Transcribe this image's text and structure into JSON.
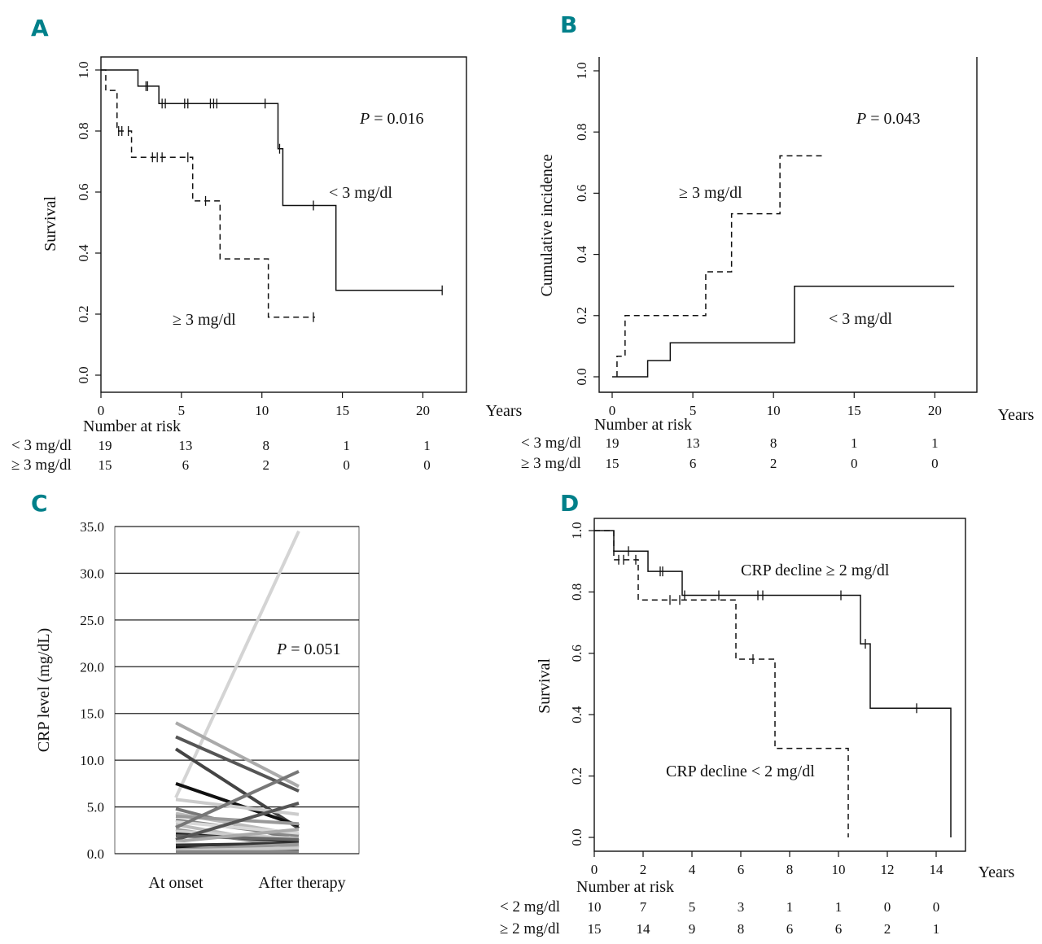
{
  "colors": {
    "panel_label": "#00808a",
    "ink": "#111111",
    "grid": "#222222"
  },
  "chart_data": [
    {
      "panel": "A",
      "type": "line",
      "subtype": "kaplan-meier survival",
      "ylabel": "Survival",
      "xlabel": "Years",
      "xlim": [
        0,
        22
      ],
      "ylim": [
        0,
        1.0
      ],
      "xticks": [
        0,
        5,
        10,
        15,
        20
      ],
      "yticks": [
        "0.0",
        "0.2",
        "0.4",
        "0.6",
        "0.8",
        "1.0"
      ],
      "pvalue_label": "P",
      "pvalue_text": " = 0.016",
      "series": [
        {
          "name": "< 3 mg/dl",
          "style": "solid",
          "steps": [
            [
              0,
              1.0
            ],
            [
              2.3,
              0.947
            ],
            [
              3.6,
              0.89
            ],
            [
              11.0,
              0.742
            ],
            [
              11.3,
              0.556
            ],
            [
              14.6,
              0.278
            ],
            [
              21.2,
              0.278
            ]
          ],
          "censor": [
            [
              2.8,
              0.947
            ],
            [
              2.9,
              0.947
            ],
            [
              3.8,
              0.89
            ],
            [
              4.0,
              0.89
            ],
            [
              5.2,
              0.89
            ],
            [
              5.4,
              0.89
            ],
            [
              6.8,
              0.89
            ],
            [
              7.0,
              0.89
            ],
            [
              7.2,
              0.89
            ],
            [
              10.2,
              0.89
            ],
            [
              11.1,
              0.742
            ],
            [
              13.2,
              0.556
            ],
            [
              21.2,
              0.278
            ]
          ]
        },
        {
          "name": "≥ 3 mg/dl",
          "style": "dashed",
          "steps": [
            [
              0,
              1.0
            ],
            [
              0.3,
              0.933
            ],
            [
              1.0,
              0.8
            ],
            [
              1.9,
              0.714
            ],
            [
              5.7,
              0.571
            ],
            [
              7.4,
              0.381
            ],
            [
              10.4,
              0.19
            ],
            [
              13.3,
              0.19
            ]
          ],
          "censor": [
            [
              1.1,
              0.8
            ],
            [
              1.3,
              0.8
            ],
            [
              1.7,
              0.8
            ],
            [
              3.2,
              0.714
            ],
            [
              3.5,
              0.714
            ],
            [
              3.8,
              0.714
            ],
            [
              5.4,
              0.714
            ],
            [
              6.5,
              0.571
            ],
            [
              13.2,
              0.19
            ]
          ]
        }
      ],
      "annotations": [
        "< 3 mg/dl",
        "≥ 3 mg/dl"
      ],
      "risk_table": {
        "title": "Number at risk",
        "rows": [
          {
            "label": "< 3 mg/dl",
            "values": [
              "19",
              "13",
              "8",
              "1",
              "1"
            ]
          },
          {
            "label": "≥ 3 mg/dl",
            "values": [
              "15",
              "6",
              "2",
              "0",
              "0"
            ]
          }
        ]
      }
    },
    {
      "panel": "B",
      "type": "line",
      "subtype": "cumulative incidence",
      "ylabel": "Cumulative incidence",
      "xlabel": "Years",
      "xlim": [
        0,
        22
      ],
      "ylim": [
        0,
        1.0
      ],
      "xticks": [
        0,
        5,
        10,
        15,
        20
      ],
      "yticks": [
        "0.0",
        "0.2",
        "0.4",
        "0.6",
        "0.8",
        "1.0"
      ],
      "pvalue_label": "P",
      "pvalue_text": " = 0.043",
      "series": [
        {
          "name": "≥ 3 mg/dl",
          "style": "dashed",
          "steps": [
            [
              0.3,
              0
            ],
            [
              0.3,
              0.067
            ],
            [
              0.8,
              0.2
            ],
            [
              5.8,
              0.343
            ],
            [
              7.4,
              0.533
            ],
            [
              10.4,
              0.722
            ],
            [
              13.0,
              0.722
            ]
          ]
        },
        {
          "name": "< 3 mg/dl",
          "style": "solid",
          "steps": [
            [
              0,
              0
            ],
            [
              2.2,
              0.053
            ],
            [
              3.6,
              0.111
            ],
            [
              11.3,
              0.296
            ],
            [
              21.2,
              0.296
            ]
          ]
        }
      ],
      "annotations": [
        "≥  3 mg/dl",
        "< 3 mg/dl"
      ],
      "risk_table": {
        "title": "Number at risk",
        "rows": [
          {
            "label": "< 3 mg/dl",
            "values": [
              "19",
              "13",
              "8",
              "1",
              "1"
            ]
          },
          {
            "label": "≥ 3 mg/dl",
            "values": [
              "15",
              "6",
              "2",
              "0",
              "0"
            ]
          }
        ]
      }
    },
    {
      "panel": "C",
      "type": "line",
      "subtype": "paired before/after",
      "ylabel": "CRP level (mg/dL)",
      "categories": [
        "At onset",
        "After therapy"
      ],
      "ylim": [
        0,
        35
      ],
      "yticks": [
        "0.0",
        "5.0",
        "10.0",
        "15.0",
        "20.0",
        "25.0",
        "30.0",
        "35.0"
      ],
      "pvalue_label": "P",
      "pvalue_text": " = 0.051",
      "pairs": [
        [
          6.0,
          34.5,
          "#d4d4d4"
        ],
        [
          14.0,
          7.2,
          "#aaaaaa"
        ],
        [
          12.5,
          6.7,
          "#555555"
        ],
        [
          11.2,
          2.7,
          "#444444"
        ],
        [
          7.5,
          3.0,
          "#111111"
        ],
        [
          5.8,
          4.2,
          "#cccccc"
        ],
        [
          4.8,
          1.4,
          "#777777"
        ],
        [
          4.3,
          2.0,
          "#bbbbbb"
        ],
        [
          4.0,
          3.2,
          "#999999"
        ],
        [
          3.6,
          1.9,
          "#888888"
        ],
        [
          3.4,
          2.2,
          "#d8d8d8"
        ],
        [
          3.1,
          0.8,
          "#bbbbbb"
        ],
        [
          2.8,
          8.8,
          "#777777"
        ],
        [
          2.6,
          0.6,
          "#999999"
        ],
        [
          2.4,
          1.6,
          "#cccccc"
        ],
        [
          2.1,
          1.3,
          "#222222"
        ],
        [
          1.9,
          1.5,
          "#666666"
        ],
        [
          1.5,
          5.4,
          "#555555"
        ],
        [
          1.3,
          2.6,
          "#aaaaaa"
        ],
        [
          1.1,
          0.3,
          "#e0e0e0"
        ],
        [
          0.9,
          1.1,
          "#333333"
        ],
        [
          0.6,
          0.4,
          "#111111"
        ],
        [
          0.4,
          1.0,
          "#999999"
        ],
        [
          0.3,
          0.6,
          "#cccccc"
        ],
        [
          0.2,
          0.2,
          "#888888"
        ]
      ]
    },
    {
      "panel": "D",
      "type": "line",
      "subtype": "kaplan-meier survival",
      "ylabel": "Survival",
      "xlabel": "Years",
      "xlim": [
        0,
        15.2
      ],
      "ylim": [
        0,
        1.0
      ],
      "xticks": [
        0,
        2,
        4,
        6,
        8,
        10,
        12,
        14
      ],
      "yticks": [
        "0.0",
        "0.2",
        "0.4",
        "0.6",
        "0.8",
        "1.0"
      ],
      "series": [
        {
          "name": "CRP decline ≥ 2 mg/dl",
          "style": "solid",
          "steps": [
            [
              0,
              1.0
            ],
            [
              0.8,
              0.933
            ],
            [
              2.2,
              0.867
            ],
            [
              3.6,
              0.789
            ],
            [
              10.9,
              0.631
            ],
            [
              11.3,
              0.421
            ],
            [
              14.6,
              0.421
            ],
            [
              14.6,
              0.0
            ]
          ],
          "censor": [
            [
              1.4,
              0.933
            ],
            [
              2.7,
              0.867
            ],
            [
              2.8,
              0.867
            ],
            [
              3.7,
              0.789
            ],
            [
              5.1,
              0.789
            ],
            [
              6.7,
              0.789
            ],
            [
              6.9,
              0.789
            ],
            [
              10.1,
              0.789
            ],
            [
              11.1,
              0.631
            ],
            [
              13.2,
              0.421
            ]
          ]
        },
        {
          "name": "CRP decline < 2 mg/dl",
          "style": "dashed",
          "steps": [
            [
              0,
              1.0
            ],
            [
              0.8,
              0.905
            ],
            [
              1.8,
              0.774
            ],
            [
              5.8,
              0.581
            ],
            [
              7.4,
              0.29
            ],
            [
              10.4,
              0.29
            ],
            [
              10.4,
              0.0
            ]
          ],
          "censor": [
            [
              1.0,
              0.905
            ],
            [
              1.2,
              0.905
            ],
            [
              1.7,
              0.905
            ],
            [
              3.1,
              0.774
            ],
            [
              3.5,
              0.774
            ],
            [
              6.5,
              0.581
            ]
          ]
        }
      ],
      "annotations": [
        "CRP decline ≥ 2 mg/dl",
        "CRP decline < 2 mg/dl"
      ],
      "risk_table": {
        "title": "Number at risk",
        "rows": [
          {
            "label": "< 2 mg/dl",
            "values": [
              "10",
              "7",
              "5",
              "3",
              "1",
              "1",
              "0",
              "0"
            ]
          },
          {
            "label": "≥ 2 mg/dl",
            "values": [
              "15",
              "14",
              "9",
              "8",
              "6",
              "6",
              "2",
              "1"
            ]
          }
        ]
      }
    }
  ],
  "panel_labels": [
    "A",
    "B",
    "C",
    "D"
  ]
}
